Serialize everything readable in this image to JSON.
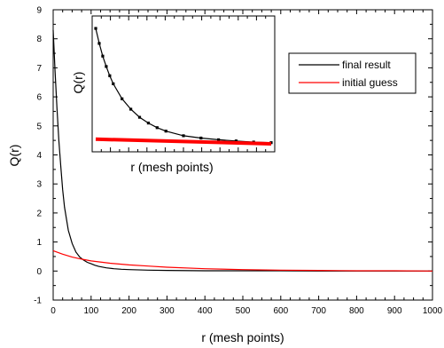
{
  "chart_data": [
    {
      "type": "line",
      "xlabel": "r (mesh points)",
      "ylabel": "Q(r)",
      "xlim": [
        0,
        1000
      ],
      "ylim": [
        -1,
        9
      ],
      "xticks": [
        0,
        100,
        200,
        300,
        400,
        500,
        600,
        700,
        800,
        900,
        1000
      ],
      "yticks": [
        -1,
        0,
        1,
        2,
        3,
        4,
        5,
        6,
        7,
        8,
        9
      ],
      "grid": false,
      "legend": "top-right",
      "series": [
        {
          "name": "final result",
          "color": "#000000",
          "x": [
            0,
            5,
            10,
            15,
            20,
            25,
            30,
            40,
            50,
            60,
            70,
            80,
            90,
            100,
            110,
            120,
            140,
            160,
            180,
            200,
            250,
            300,
            400,
            500,
            600,
            700,
            800,
            900,
            1000
          ],
          "y": [
            8.3,
            6.9,
            5.6,
            4.5,
            3.6,
            2.8,
            2.2,
            1.4,
            0.95,
            0.65,
            0.48,
            0.38,
            0.3,
            0.25,
            0.2,
            0.16,
            0.11,
            0.08,
            0.06,
            0.05,
            0.03,
            0.02,
            0.01,
            0.01,
            0.01,
            0.0,
            0.0,
            0.0,
            0.0
          ]
        },
        {
          "name": "initial guess",
          "color": "#ff0000",
          "x": [
            0,
            25,
            50,
            75,
            100,
            150,
            200,
            250,
            300,
            400,
            500,
            600,
            700,
            800,
            900,
            1000
          ],
          "y": [
            0.7,
            0.58,
            0.48,
            0.41,
            0.35,
            0.27,
            0.21,
            0.17,
            0.13,
            0.08,
            0.05,
            0.03,
            0.02,
            0.01,
            0.01,
            0.0
          ]
        }
      ]
    },
    {
      "type": "line",
      "xlabel": "r (mesh points)",
      "ylabel": "Q(r)",
      "grid": false,
      "series": [
        {
          "name": "final result",
          "color": "#000000",
          "marker": "square",
          "x": [
            0,
            0.02,
            0.04,
            0.06,
            0.08,
            0.1,
            0.15,
            0.2,
            0.25,
            0.3,
            0.35,
            0.4,
            0.5,
            0.6,
            0.7,
            0.8,
            0.9,
            1.0
          ],
          "y": [
            1.0,
            0.87,
            0.76,
            0.67,
            0.59,
            0.52,
            0.39,
            0.3,
            0.23,
            0.18,
            0.14,
            0.11,
            0.07,
            0.05,
            0.035,
            0.025,
            0.015,
            0.01
          ]
        },
        {
          "name": "initial guess",
          "color": "#ff0000",
          "x": [
            0,
            1.0
          ],
          "y": [
            0.04,
            0.0
          ]
        }
      ]
    }
  ],
  "legend": {
    "items": [
      {
        "label": "final result",
        "color": "#000000"
      },
      {
        "label": "initial guess",
        "color": "#ff0000"
      }
    ]
  }
}
